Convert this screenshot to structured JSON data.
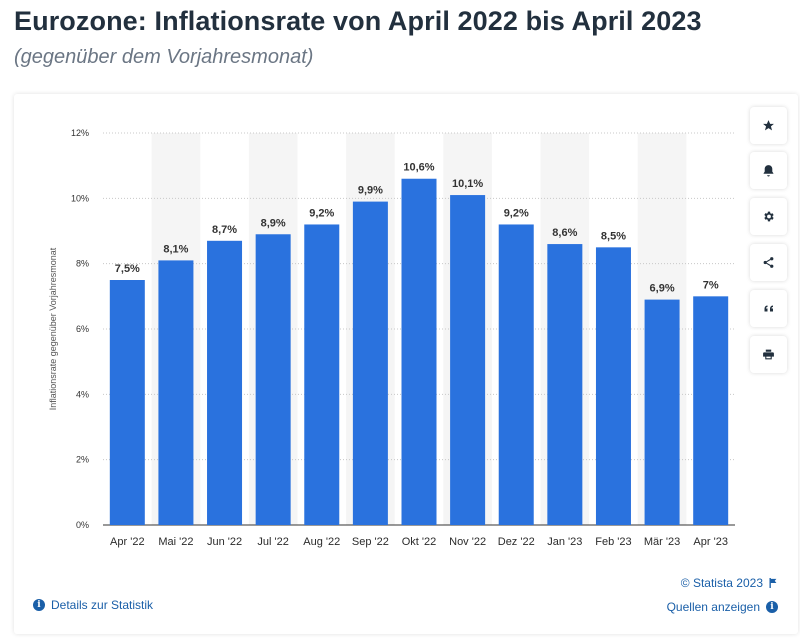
{
  "page": {
    "title": "Eurozone: Inflationsrate von April 2022 bis April 2023",
    "subtitle": "(gegenüber dem Vorjahresmonat)"
  },
  "toolbar": {
    "items": [
      {
        "name": "favorite",
        "icon": "star-icon"
      },
      {
        "name": "notification",
        "icon": "bell-icon"
      },
      {
        "name": "settings",
        "icon": "gear-icon"
      },
      {
        "name": "share",
        "icon": "share-icon"
      },
      {
        "name": "cite",
        "icon": "quote-icon"
      },
      {
        "name": "print",
        "icon": "printer-icon"
      }
    ]
  },
  "footer": {
    "details_label": "Details zur Statistik",
    "copyright": "© Statista 2023",
    "sources_label": "Quellen anzeigen"
  },
  "colors": {
    "bar": "#2a72de",
    "band": "#f5f5f5",
    "grid": "#c8c8c8",
    "link": "#1a5fa8"
  },
  "chart_data": {
    "type": "bar",
    "title": "Eurozone: Inflationsrate von April 2022 bis April 2023",
    "subtitle": "(gegenüber dem Vorjahresmonat)",
    "xlabel": "",
    "ylabel": "Inflationsrate gegenüber Vorjahresmonat",
    "categories": [
      "Apr '22",
      "Mai '22",
      "Jun '22",
      "Jul '22",
      "Aug '22",
      "Sep '22",
      "Okt '22",
      "Nov '22",
      "Dez '22",
      "Jan '23",
      "Feb '23",
      "Mär '23",
      "Apr '23"
    ],
    "values": [
      7.5,
      8.1,
      8.7,
      8.9,
      9.2,
      9.9,
      10.6,
      10.1,
      9.2,
      8.6,
      8.5,
      6.9,
      7
    ],
    "value_labels": [
      "7,5%",
      "8,1%",
      "8,7%",
      "8,9%",
      "9,2%",
      "9,9%",
      "10,6%",
      "10,1%",
      "9,2%",
      "8,6%",
      "8,5%",
      "6,9%",
      "7%"
    ],
    "yticks": [
      0,
      2,
      4,
      6,
      8,
      10,
      12
    ],
    "ytick_labels": [
      "0%",
      "2%",
      "4%",
      "6%",
      "8%",
      "10%",
      "12%"
    ],
    "ylim": [
      0,
      12
    ],
    "grid": true,
    "legend": "none"
  }
}
